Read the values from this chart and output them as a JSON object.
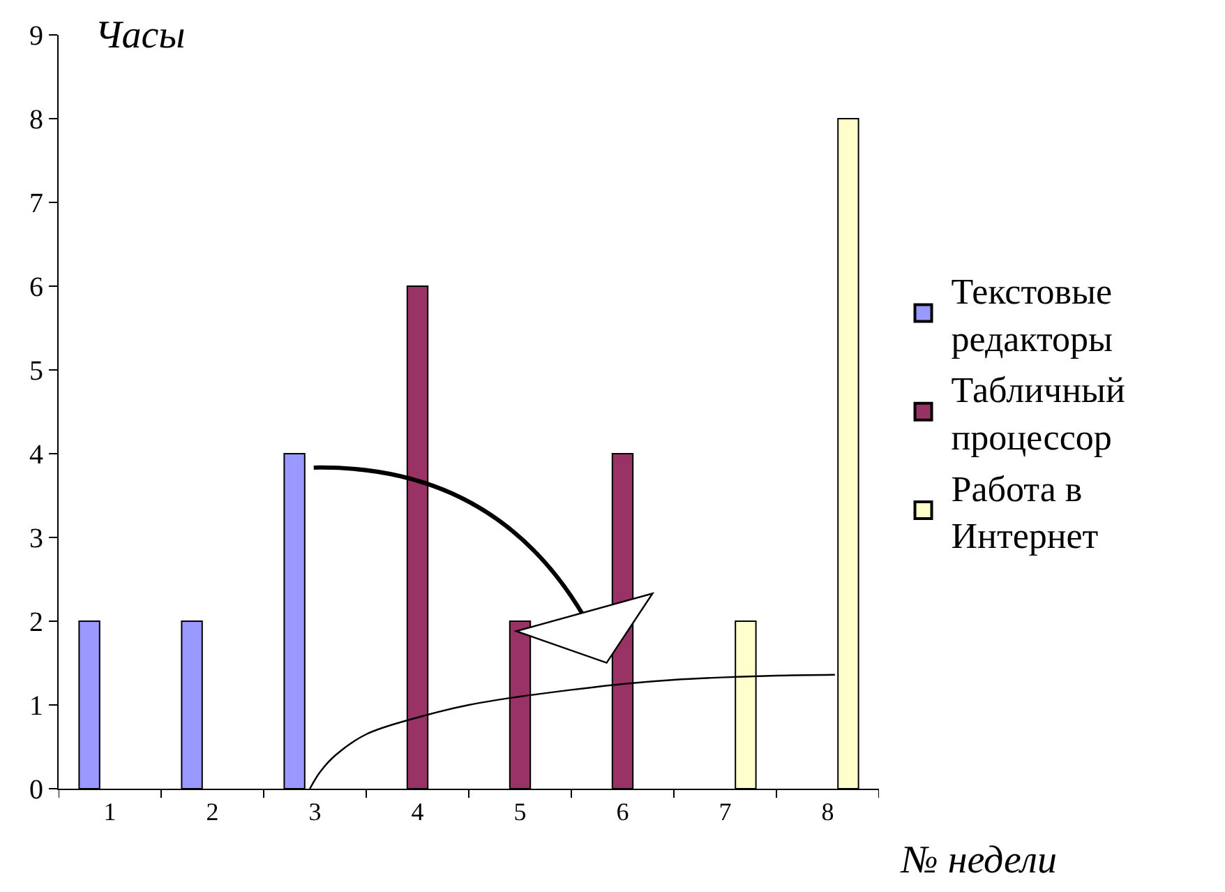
{
  "chart_data": {
    "type": "bar",
    "x": [
      1,
      2,
      3,
      4,
      5,
      6,
      7,
      8
    ],
    "series": [
      {
        "name": "Текстовые\nредакторы",
        "color": "#9999ff",
        "values": [
          2,
          2,
          4,
          null,
          null,
          null,
          null,
          null
        ]
      },
      {
        "name": "Табличный\nпроцессор",
        "color": "#993366",
        "values": [
          null,
          null,
          null,
          6,
          2,
          4,
          null,
          null
        ]
      },
      {
        "name": "Работа в\nИнтернет",
        "color": "#ffffcc",
        "values": [
          null,
          null,
          null,
          null,
          null,
          null,
          2,
          8
        ]
      },
      {
        "type": "line",
        "color": "#000000",
        "x": [
          2.95,
          3.05,
          3.2,
          3.5,
          4,
          4.5,
          5,
          5.5,
          6,
          6.5,
          7,
          7.5,
          8.07
        ],
        "values": [
          0,
          0.2,
          0.4,
          0.65,
          0.85,
          1.0,
          1.1,
          1.18,
          1.25,
          1.3,
          1.33,
          1.35,
          1.36
        ]
      }
    ],
    "ylabel": "Часы",
    "xlabel": "№ недели",
    "xlim": [
      0.5,
      8.5
    ],
    "xticks": [
      1,
      2,
      3,
      4,
      5,
      6,
      7,
      8
    ],
    "ylim": [
      0,
      9
    ],
    "yticks": [
      0,
      1,
      2,
      3,
      4,
      5,
      6,
      7,
      8,
      9
    ],
    "legend": "right"
  }
}
